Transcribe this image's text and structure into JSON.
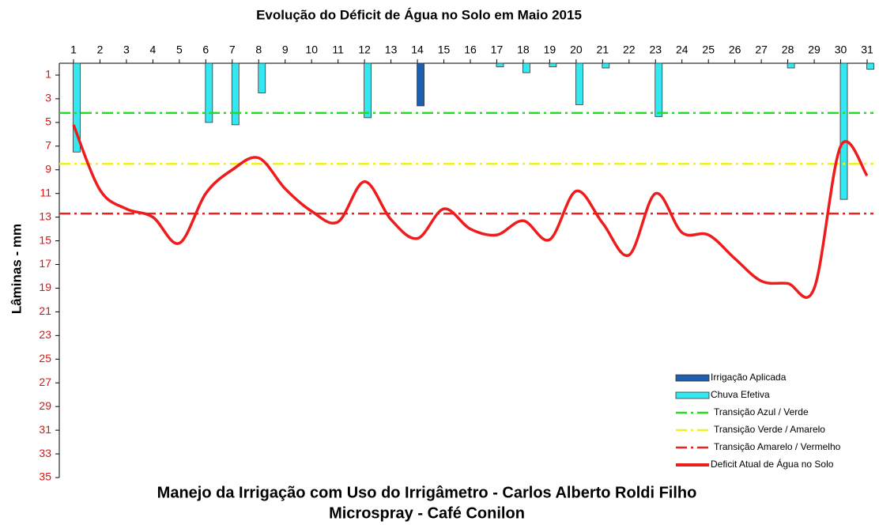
{
  "chart_data": {
    "type": "combo",
    "title": "Evolução do Déficit de Água no Solo em Maio 2015",
    "ylabel": "Lâminas - mm",
    "footer": [
      "Manejo da Irrigação com Uso do Irrigâmetro - Carlos Alberto Roldi Filho",
      "Microspray - Café Conilon"
    ],
    "categories": [
      "1",
      "2",
      "3",
      "4",
      "5",
      "6",
      "7",
      "8",
      "9",
      "10",
      "11",
      "12",
      "13",
      "14",
      "15",
      "16",
      "17",
      "18",
      "19",
      "20",
      "21",
      "22",
      "23",
      "24",
      "25",
      "26",
      "27",
      "28",
      "29",
      "30",
      "31"
    ],
    "ylim": [
      0,
      35
    ],
    "y_inverted": true,
    "yticks": [
      1,
      3,
      5,
      7,
      9,
      11,
      13,
      15,
      17,
      19,
      21,
      23,
      25,
      27,
      29,
      31,
      33,
      35
    ],
    "series": [
      {
        "name": "Irrigação Aplicada",
        "kind": "bar",
        "color": "#1f5fb0",
        "values": [
          null,
          null,
          null,
          null,
          null,
          null,
          null,
          null,
          null,
          null,
          null,
          null,
          null,
          3.6,
          null,
          null,
          null,
          null,
          null,
          null,
          null,
          null,
          null,
          null,
          null,
          null,
          null,
          null,
          null,
          null,
          null
        ]
      },
      {
        "name": "Chuva Efetiva",
        "kind": "bar",
        "color": "#33e8f0",
        "values": [
          7.5,
          null,
          null,
          null,
          null,
          5,
          5.2,
          2.5,
          null,
          null,
          null,
          4.6,
          null,
          null,
          null,
          null,
          0.3,
          0.8,
          0.3,
          3.5,
          0.4,
          null,
          4.5,
          null,
          null,
          null,
          null,
          0.4,
          null,
          11.5,
          0.5
        ]
      },
      {
        "name": "Transição Azul / Verde",
        "kind": "reference",
        "color": "#22dd22",
        "value": 4.2
      },
      {
        "name": "Transição Verde / Amarelo",
        "kind": "reference",
        "color": "#f0f020",
        "value": 8.5
      },
      {
        "name": "Transição Amarelo / Vermelho",
        "kind": "reference",
        "color": "#ee2020",
        "value": 12.7
      },
      {
        "name": "Deficit Atual de Água no Solo",
        "kind": "line",
        "color": "#ee1c1c",
        "values": [
          5.2,
          10.7,
          12.3,
          13.0,
          15.2,
          11.0,
          9.0,
          8.0,
          10.6,
          12.5,
          13.4,
          10.0,
          13.2,
          14.8,
          12.3,
          14.0,
          14.5,
          13.3,
          14.9,
          10.8,
          13.5,
          16.2,
          11.0,
          14.3,
          14.5,
          16.5,
          18.4,
          18.6,
          19.0,
          7.0,
          9.5
        ]
      }
    ]
  }
}
